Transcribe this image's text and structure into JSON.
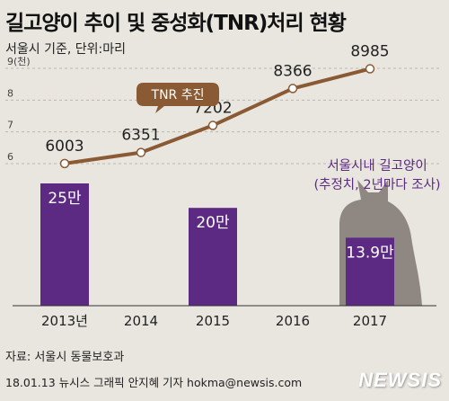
{
  "title": "길고양이 추이 및  중성화(TNR)처리 현황",
  "subtitle": "서울시 기준, 단위:마리",
  "source": "자료: 서울시 동물보호과",
  "credit": "18.01.13 뉴시스 그래픽 안지혜 기자 hokma@newsis.com",
  "logo": "NEWSIS",
  "colors": {
    "background": "#e9e6e0",
    "bar": "#5c2a82",
    "line": "#8a5a34",
    "cat": "#8e8782",
    "annotation_text": "#5c2a82"
  },
  "chart_data": {
    "type": "bar+line",
    "categories": [
      "2013년",
      "2014",
      "2015",
      "2016",
      "2017"
    ],
    "line": {
      "label": "TNR 추진",
      "values": [
        6003,
        6351,
        7202,
        8366,
        8985
      ],
      "value_labels": [
        "6003",
        "6351",
        "7202",
        "8366",
        "8985"
      ],
      "axis_ticks": [
        "9(천)",
        "8",
        "7",
        "6"
      ],
      "ylim": [
        6000,
        9000
      ]
    },
    "bars": {
      "categories": [
        "2013년",
        "2015",
        "2017"
      ],
      "values": [
        25,
        20,
        13.9
      ],
      "value_labels": [
        "25만",
        "20만",
        "13.9만"
      ]
    },
    "annotation": [
      "서울시내 길고양이",
      "(추정치, 2년마다 조사)"
    ],
    "icon": "cat-silhouette-icon",
    "grid": true
  }
}
